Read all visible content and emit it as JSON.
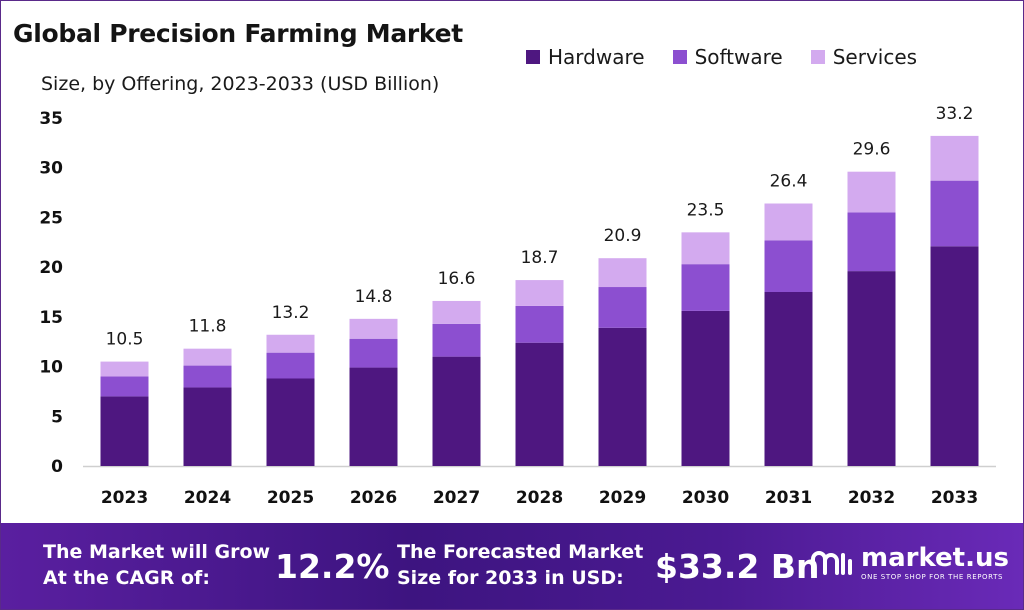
{
  "title": "Global Precision Farming Market",
  "subtitle": "Size, by Offering, 2023-2033 (USD Billion)",
  "colors": {
    "hardware": "#4e1780",
    "software": "#8c4fd0",
    "services": "#d3aaef",
    "axis": "#cfcfcf"
  },
  "chart_data": {
    "type": "bar",
    "stacked": true,
    "title": "Global Precision Farming Market",
    "subtitle": "Size, by Offering, 2023-2033 (USD Billion)",
    "categories": [
      "2023",
      "2024",
      "2025",
      "2026",
      "2027",
      "2028",
      "2029",
      "2030",
      "2031",
      "2032",
      "2033"
    ],
    "series": [
      {
        "name": "Hardware",
        "values": [
          7.0,
          7.9,
          8.8,
          9.9,
          11.0,
          12.4,
          13.9,
          15.6,
          17.5,
          19.6,
          22.1
        ]
      },
      {
        "name": "Software",
        "values": [
          2.0,
          2.2,
          2.6,
          2.9,
          3.3,
          3.7,
          4.1,
          4.7,
          5.2,
          5.9,
          6.6
        ]
      },
      {
        "name": "Services",
        "values": [
          1.5,
          1.7,
          1.8,
          2.0,
          2.3,
          2.6,
          2.9,
          3.2,
          3.7,
          4.1,
          4.5
        ]
      }
    ],
    "totals": [
      "10.5",
      "11.8",
      "13.2",
      "14.8",
      "16.6",
      "18.7",
      "20.9",
      "23.5",
      "26.4",
      "29.6",
      "33.2"
    ],
    "yticks": [
      "0",
      "5",
      "10",
      "15",
      "20",
      "25",
      "30",
      "35"
    ],
    "ylim": [
      0,
      35
    ],
    "grid": false,
    "legend_position": "top-right"
  },
  "banner": {
    "cagr_label_line1": "The Market will Grow",
    "cagr_label_line2": "At the CAGR of:",
    "cagr_value": "12.2%",
    "forecast_label_line1": "The Forecasted Market",
    "forecast_label_line2": "Size for 2033 in USD:",
    "forecast_value": "$33.2 Bn",
    "logo_name": "market.us",
    "logo_tagline": "ONE STOP SHOP FOR THE REPORTS"
  }
}
